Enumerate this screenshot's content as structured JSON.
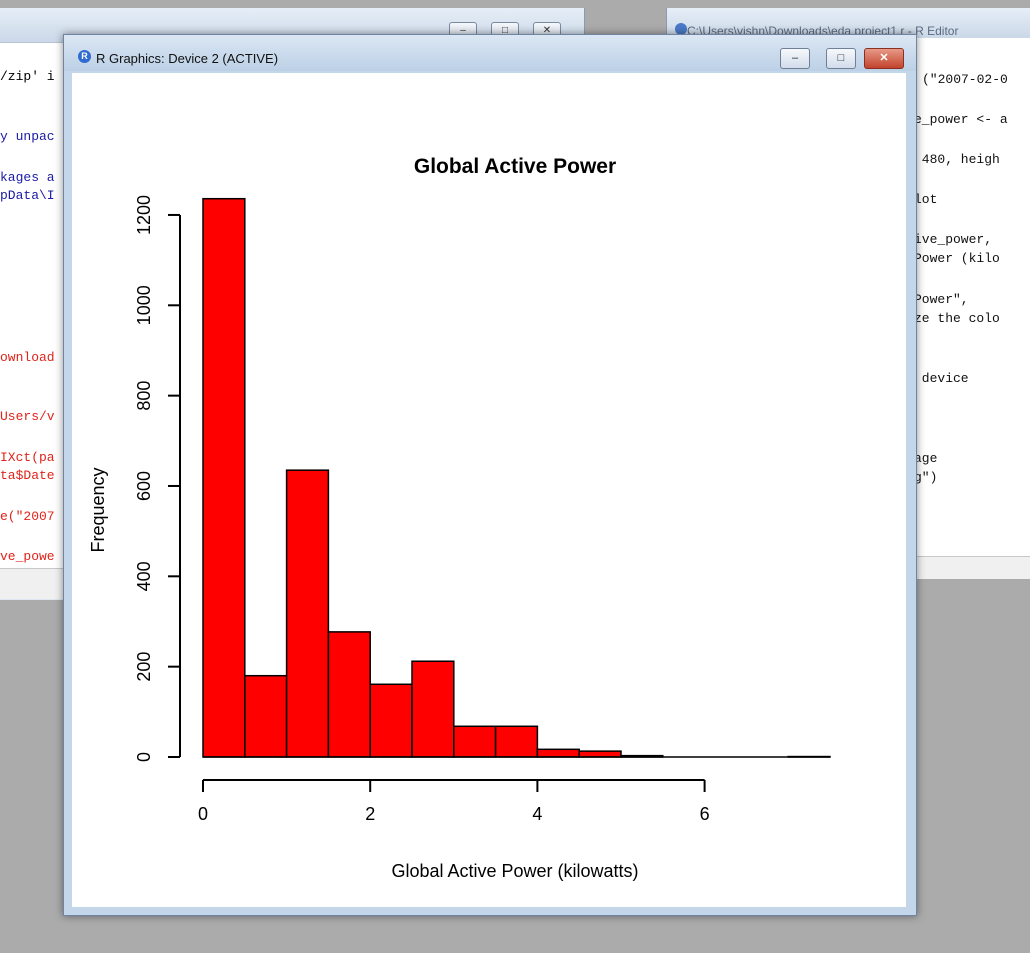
{
  "background_console": {
    "code_lines": [
      {
        "text": "/zip' i",
        "color": "black"
      },
      {
        "text": "y unpac",
        "color": "blue"
      },
      {
        "text": "kages a",
        "color": "blue"
      },
      {
        "text": "pData\\I",
        "color": "blue"
      },
      {
        "text": "ownload",
        "color": "red"
      },
      {
        "text": "Users/v",
        "color": "red"
      },
      {
        "text": "IXct(pa",
        "color": "red"
      },
      {
        "text": "ta$Date",
        "color": "red"
      },
      {
        "text": "e(\"2007",
        "color": "red"
      },
      {
        "text": "ve_powe",
        "color": "red"
      }
    ]
  },
  "background_editor": {
    "title": "C:\\Users\\vishn\\Downloads\\eda project1.r - R Editor",
    "code_lines": [
      "(\"2007-02-0",
      "e_power <- a",
      " 480, heigh",
      "lot",
      "ive_power,",
      "Power (kilo",
      "Power\",",
      "ze the colo",
      " device",
      "age",
      "g\")"
    ]
  },
  "graphics_window": {
    "title": "R Graphics: Device 2 (ACTIVE)",
    "icon": "r-logo-icon",
    "controls": {
      "minimize": "–",
      "maximize": "□",
      "close": "✕"
    }
  },
  "chart_data": {
    "type": "bar",
    "title": "Global Active Power",
    "xlabel": "Global Active Power (kilowatts)",
    "ylabel": "Frequency",
    "bin_edges": [
      0,
      0.5,
      1,
      1.5,
      2,
      2.5,
      3,
      3.5,
      4,
      4.5,
      5,
      5.5,
      6,
      6.5,
      7,
      7.5
    ],
    "values": [
      1236,
      180,
      635,
      277,
      161,
      212,
      68,
      68,
      17,
      13,
      3,
      0,
      0,
      0,
      1
    ],
    "x_ticks": [
      "0",
      "2",
      "4",
      "6"
    ],
    "y_ticks": [
      "0",
      "200",
      "400",
      "600",
      "800",
      "1000",
      "1200"
    ],
    "bar_color": "#ff0000",
    "xlim": [
      0,
      6
    ],
    "ylim": [
      0,
      1200
    ],
    "grid": false
  }
}
